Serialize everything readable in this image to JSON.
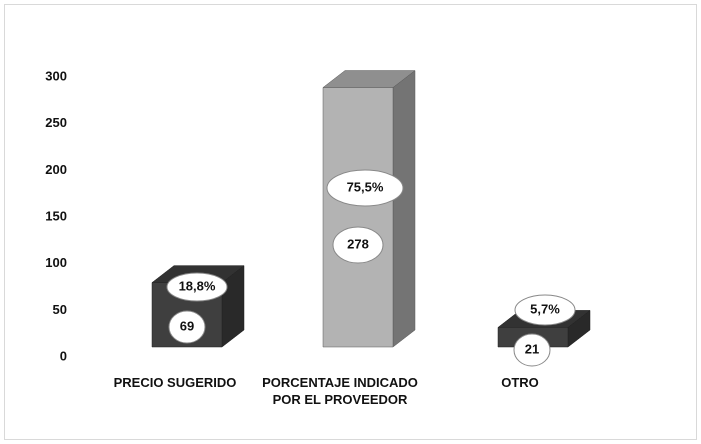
{
  "chart_data": {
    "type": "bar3d",
    "categories": [
      "PRECIO SUGERIDO",
      "PORCENTAJE INDICADO POR EL PROVEEDOR",
      "OTRO"
    ],
    "values": [
      69,
      278,
      21
    ],
    "percent_labels": [
      "18,8%",
      "75,5%",
      "5,7%"
    ],
    "colors": [
      "#3f3f3f",
      "#b3b3b3",
      "#3f3f3f"
    ],
    "ylim": [
      0,
      300
    ],
    "yticks": [
      0,
      50,
      100,
      150,
      200,
      250,
      300
    ],
    "grid": false
  }
}
